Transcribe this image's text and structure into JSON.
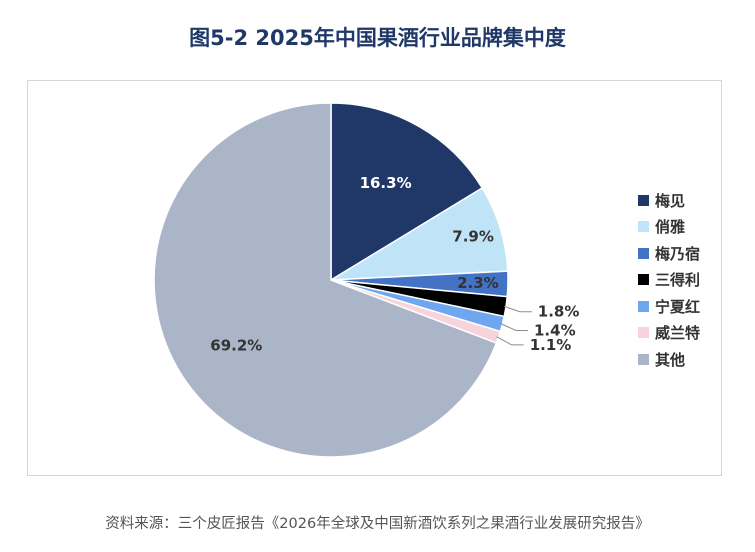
{
  "title": "图5-2 2025年中国果酒行业品牌集中度",
  "source": "资料来源：三个皮匠报告《2026年全球及中国新酒饮系列之果酒行业发展研究报告》",
  "chart_data": {
    "type": "pie",
    "title": "图5-2 2025年中国果酒行业品牌集中度",
    "legend_position": "right",
    "slices": [
      {
        "name": "梅见",
        "value": 16.3,
        "label": "16.3%",
        "color": "#1f3868"
      },
      {
        "name": "俏雅",
        "value": 7.9,
        "label": "7.9%",
        "color": "#bfe3f7"
      },
      {
        "name": "梅乃宿",
        "value": 2.3,
        "label": "2.3%",
        "color": "#4472c4"
      },
      {
        "name": "三得利",
        "value": 1.8,
        "label": "1.8%",
        "color": "#000000"
      },
      {
        "name": "宁夏红",
        "value": 1.4,
        "label": "1.4%",
        "color": "#6ea6f0"
      },
      {
        "name": "威兰特",
        "value": 1.1,
        "label": "1.1%",
        "color": "#f7d3dc"
      },
      {
        "name": "其他",
        "value": 69.2,
        "label": "69.2%",
        "color": "#abb5c8"
      }
    ]
  }
}
